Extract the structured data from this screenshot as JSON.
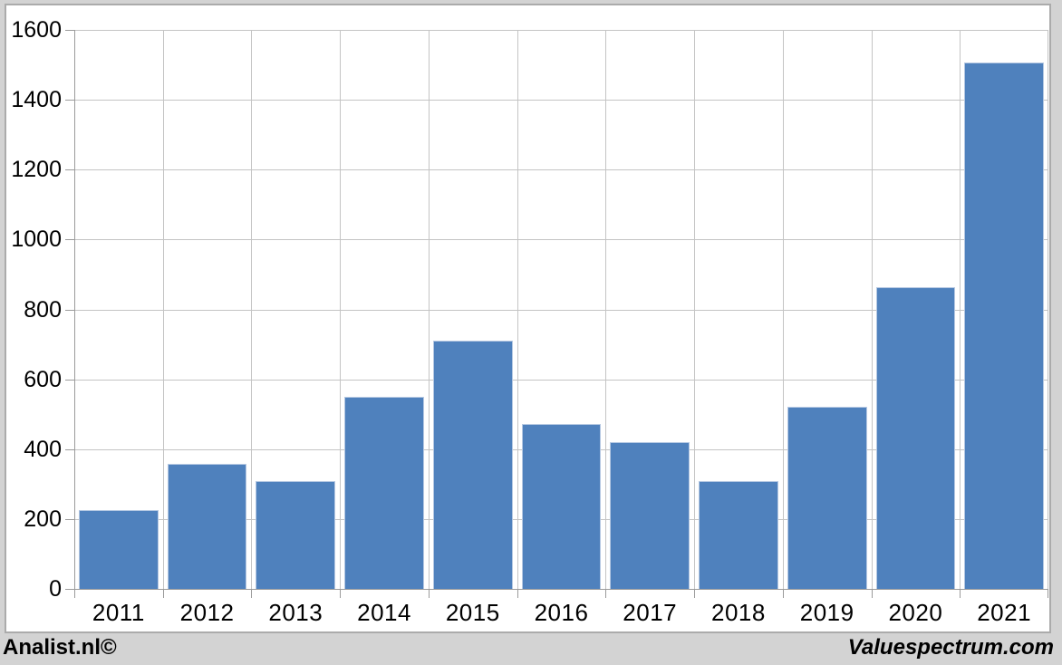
{
  "footer": {
    "left_text": "Analist.nl©",
    "right_text": "Valuespectrum.com"
  },
  "chart_data": {
    "type": "bar",
    "title": "",
    "xlabel": "",
    "ylabel": "",
    "categories": [
      "2011",
      "2012",
      "2013",
      "2014",
      "2015",
      "2016",
      "2017",
      "2018",
      "2019",
      "2020",
      "2021"
    ],
    "values": [
      226,
      358,
      309,
      549,
      710,
      472,
      419,
      309,
      521,
      863,
      1506
    ],
    "ylim": [
      0,
      1600
    ],
    "ytick_step": 200,
    "yticks": [
      0,
      200,
      400,
      600,
      800,
      1000,
      1200,
      1400,
      1600
    ],
    "grid": true,
    "legend": "none",
    "colors": {
      "bar_fill": "#4f81bd",
      "bar_edge": "#b5c8e2",
      "gridline": "#c4c4c4",
      "axis": "#9b9b9b",
      "plot_background": "#ffffff",
      "page_background": "#d3d3d3",
      "panel_border": "#ababab",
      "text": "#000000"
    }
  }
}
